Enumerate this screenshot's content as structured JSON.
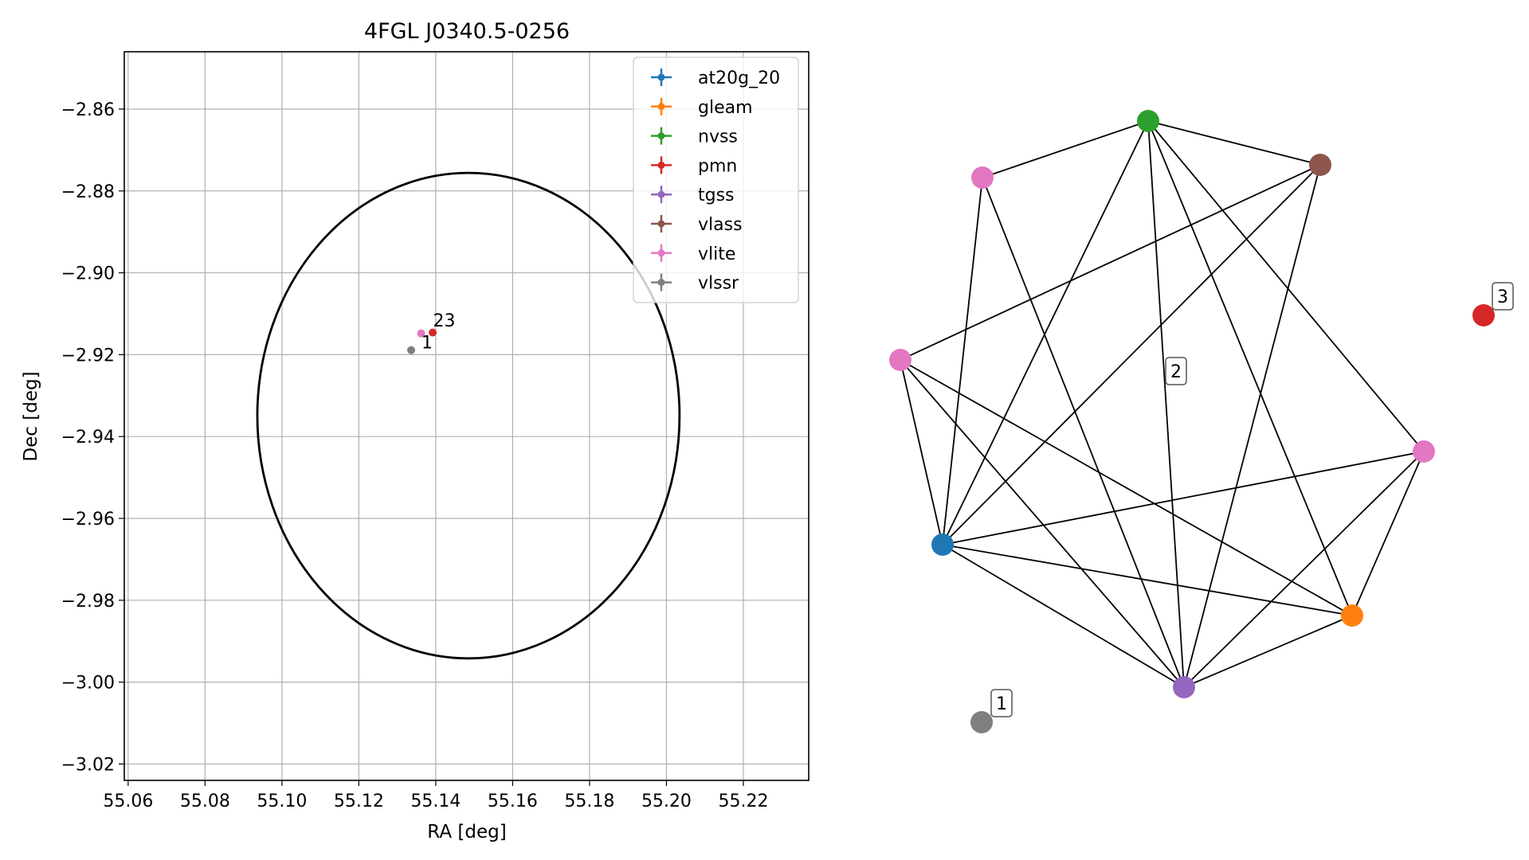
{
  "figure": {
    "colors": {
      "at20g_20": "#1f77b4",
      "gleam": "#ff7f0e",
      "nvss": "#2ca02c",
      "pmn": "#d62728",
      "tgss": "#9467bd",
      "vlass": "#8c564b",
      "vlite": "#e377c2",
      "vlssr": "#7f7f7f"
    }
  },
  "chart_data": [
    {
      "type": "scatter",
      "title": "4FGL J0340.5-0256",
      "xlabel": "RA [deg]",
      "ylabel": "Dec [deg]",
      "xlim": [
        55.059,
        55.237
      ],
      "ylim": [
        -3.024,
        -2.846
      ],
      "xticks": [
        55.06,
        55.08,
        55.1,
        55.12,
        55.14,
        55.16,
        55.18,
        55.2,
        55.22
      ],
      "xtick_labels": [
        "55.06",
        "55.08",
        "55.10",
        "55.12",
        "55.14",
        "55.16",
        "55.18",
        "55.20",
        "55.22"
      ],
      "yticks": [
        -2.86,
        -2.88,
        -2.9,
        -2.92,
        -2.94,
        -2.96,
        -2.98,
        -3.0,
        -3.02
      ],
      "ytick_labels": [
        "−2.86",
        "−2.88",
        "−2.90",
        "−2.92",
        "−2.94",
        "−2.96",
        "−2.98",
        "−3.00",
        "−3.02"
      ],
      "grid": true,
      "legend_position": "top-right",
      "legend": [
        "at20g_20",
        "gleam",
        "nvss",
        "pmn",
        "tgss",
        "vlass",
        "vlite",
        "vlssr"
      ],
      "ellipse": {
        "center": [
          55.1485,
          -2.9349
        ],
        "ra_radius": 0.0549,
        "dec_radius": 0.0593
      },
      "points": [
        {
          "series": "vlite",
          "ra": 55.1362,
          "dec": -2.9148
        },
        {
          "series": "pmn",
          "ra": 55.1392,
          "dec": -2.9146
        },
        {
          "series": "vlssr",
          "ra": 55.1336,
          "dec": -2.9189
        }
      ],
      "annotations": [
        {
          "text": "1",
          "ra": 55.1363,
          "dec": -2.9165
        },
        {
          "text": "23",
          "ra": 55.1393,
          "dec": -2.9112
        }
      ]
    },
    {
      "type": "network",
      "nodes": [
        {
          "id": "n1",
          "series": "nvss"
        },
        {
          "id": "n2",
          "series": "vlass"
        },
        {
          "id": "n3",
          "series": "vlite"
        },
        {
          "id": "n4",
          "series": "vlite"
        },
        {
          "id": "n5",
          "series": "vlite"
        },
        {
          "id": "n6",
          "series": "at20g_20"
        },
        {
          "id": "n7",
          "series": "gleam"
        },
        {
          "id": "n8",
          "series": "tgss"
        },
        {
          "id": "n9",
          "series": "pmn"
        },
        {
          "id": "n10",
          "series": "vlssr"
        }
      ],
      "edges": [
        [
          "n1",
          "n3"
        ],
        [
          "n1",
          "n2"
        ],
        [
          "n1",
          "n6"
        ],
        [
          "n1",
          "n8"
        ],
        [
          "n1",
          "n7"
        ],
        [
          "n1",
          "n5"
        ],
        [
          "n2",
          "n4"
        ],
        [
          "n2",
          "n6"
        ],
        [
          "n2",
          "n8"
        ],
        [
          "n3",
          "n6"
        ],
        [
          "n3",
          "n8"
        ],
        [
          "n4",
          "n6"
        ],
        [
          "n4",
          "n8"
        ],
        [
          "n4",
          "n7"
        ],
        [
          "n5",
          "n6"
        ],
        [
          "n5",
          "n8"
        ],
        [
          "n5",
          "n7"
        ],
        [
          "n6",
          "n7"
        ],
        [
          "n6",
          "n8"
        ],
        [
          "n7",
          "n8"
        ]
      ],
      "labels": [
        {
          "text": "1",
          "node": "n10"
        },
        {
          "text": "2"
        },
        {
          "text": "3",
          "node": "n9"
        }
      ]
    }
  ]
}
